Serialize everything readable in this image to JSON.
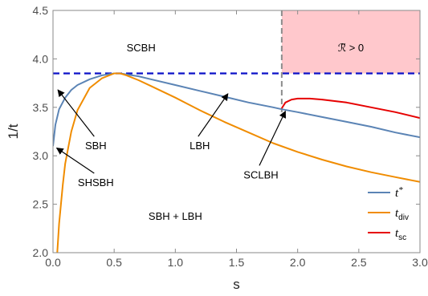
{
  "chart_data": {
    "type": "line",
    "xlabel": "s",
    "ylabel": "1/t",
    "xlim": [
      0,
      3
    ],
    "ylim": [
      2.0,
      4.5
    ],
    "x_ticks": [
      0.0,
      0.5,
      1.0,
      1.5,
      2.0,
      2.5,
      3.0
    ],
    "x_tick_labels": [
      "0.0",
      "0.5",
      "1.0",
      "1.5",
      "2.0",
      "2.5",
      "3.0"
    ],
    "y_ticks": [
      2.0,
      2.5,
      3.0,
      3.5,
      4.0,
      4.5
    ],
    "y_tick_labels": [
      "2.0",
      "2.5",
      "3.0",
      "3.5",
      "4.0",
      "4.5"
    ],
    "colors": {
      "t_star": "#5b84b5",
      "t_div": "#f08c00",
      "t_sc": "#e60000",
      "critical_line": "#0b10c8",
      "shade": "#ffc8cc",
      "vline": "#8c8c8c"
    },
    "series": [
      {
        "name": "t*",
        "key": "t_star",
        "x": [
          0.0,
          0.02,
          0.05,
          0.1,
          0.15,
          0.2,
          0.3,
          0.4,
          0.5,
          0.55,
          0.6,
          0.7,
          0.8,
          1.0,
          1.2,
          1.4,
          1.6,
          1.8,
          1.87,
          2.0,
          2.2,
          2.4,
          2.6,
          2.8,
          3.0
        ],
        "y": [
          3.1,
          3.32,
          3.48,
          3.6,
          3.68,
          3.73,
          3.79,
          3.83,
          3.85,
          3.85,
          3.84,
          3.82,
          3.79,
          3.73,
          3.67,
          3.61,
          3.55,
          3.5,
          3.48,
          3.45,
          3.4,
          3.35,
          3.3,
          3.24,
          3.19
        ]
      },
      {
        "name": "t_div",
        "key": "t_div",
        "x": [
          0.035,
          0.05,
          0.08,
          0.1,
          0.15,
          0.2,
          0.3,
          0.4,
          0.5,
          0.55,
          0.6,
          0.7,
          0.8,
          1.0,
          1.2,
          1.4,
          1.6,
          1.8,
          2.0,
          2.2,
          2.4,
          2.6,
          2.8,
          3.0
        ],
        "y": [
          2.0,
          2.3,
          2.7,
          2.92,
          3.25,
          3.47,
          3.7,
          3.8,
          3.85,
          3.85,
          3.83,
          3.78,
          3.72,
          3.6,
          3.47,
          3.35,
          3.24,
          3.13,
          3.04,
          2.96,
          2.89,
          2.83,
          2.78,
          2.73
        ]
      },
      {
        "name": "t_sc",
        "key": "t_sc",
        "x": [
          1.87,
          1.9,
          1.95,
          2.0,
          2.1,
          2.2,
          2.4,
          2.6,
          2.8,
          3.0
        ],
        "y": [
          3.49,
          3.55,
          3.58,
          3.59,
          3.59,
          3.58,
          3.55,
          3.5,
          3.45,
          3.39
        ]
      }
    ],
    "critical_value": 3.85,
    "divider_x": 1.87,
    "shaded_region": {
      "x_from": 1.87,
      "x_to": 3.0,
      "label": "ℛ̃ > 0"
    },
    "legend": {
      "placement": "bottom-right",
      "entries": [
        {
          "key": "t_star",
          "main": "t",
          "sup": "*",
          "sub": ""
        },
        {
          "key": "t_div",
          "main": "t",
          "sup": "",
          "sub": "div"
        },
        {
          "key": "t_sc",
          "main": "t",
          "sup": "",
          "sub": "sc"
        }
      ]
    },
    "regions": [
      {
        "label": "SCBH",
        "x": 0.72,
        "y": 4.12
      },
      {
        "label": "SBH + LBH",
        "x": 1.0,
        "y": 2.38
      }
    ],
    "annotations": [
      {
        "label": "SBH",
        "text_x": 0.35,
        "text_y": 3.1,
        "arrow_to_x": 0.04,
        "arrow_to_y": 3.68
      },
      {
        "label": "SHSBH",
        "text_x": 0.35,
        "text_y": 2.72,
        "arrow_to_x": 0.03,
        "arrow_to_y": 3.08
      },
      {
        "label": "LBH",
        "text_x": 1.2,
        "text_y": 3.1,
        "arrow_to_x": 1.43,
        "arrow_to_y": 3.64
      },
      {
        "label": "SCLBH",
        "text_x": 1.7,
        "text_y": 2.8,
        "arrow_to_x": 1.9,
        "arrow_to_y": 3.46
      }
    ]
  }
}
